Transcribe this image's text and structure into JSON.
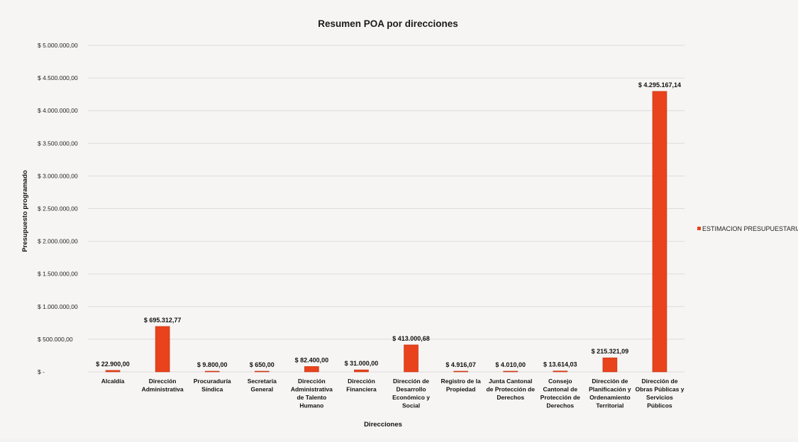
{
  "chart_data": {
    "type": "bar",
    "title": "Resumen POA por direcciones",
    "xlabel": "Direcciones",
    "ylabel": "Presupuesto programado",
    "ylim": [
      0,
      5000000
    ],
    "grid": true,
    "legend_position": "right",
    "y_ticks": [
      0,
      500000,
      1000000,
      1500000,
      2000000,
      2500000,
      3000000,
      3500000,
      4000000,
      4500000,
      5000000
    ],
    "y_tick_labels": [
      "$ -",
      "$ 500.000,00",
      "$ 1.000.000,00",
      "$ 1.500.000,00",
      "$ 2.000.000,00",
      "$ 2.500.000,00",
      "$ 3.000.000,00",
      "$ 3.500.000,00",
      "$ 4.000.000,00",
      "$ 4.500.000,00",
      "$ 5.000.000,00"
    ],
    "categories": [
      [
        "Alcaldía"
      ],
      [
        "Dirección",
        "Administrativa"
      ],
      [
        "Procuraduría",
        "Síndica"
      ],
      [
        "Secretaría",
        "General"
      ],
      [
        "Dirección",
        "Administrativa",
        "de Talento",
        "Humano"
      ],
      [
        "Dirección",
        "Financiera"
      ],
      [
        "Dirección de",
        "Desarrollo",
        "Económico y",
        "Social"
      ],
      [
        "Registro de la",
        "Propiedad"
      ],
      [
        "Junta Cantonal",
        "de Protección de",
        "Derechos"
      ],
      [
        "Consejo",
        "Cantonal de",
        "Protección de",
        "Derechos"
      ],
      [
        "Dirección de",
        "Planificación y",
        "Ordenamiento",
        "Territorial"
      ],
      [
        "Dirección de",
        "Obras Públicas y",
        "Servicios",
        "Públicos"
      ]
    ],
    "series": [
      {
        "name": "ESTIMACION PRESUPUESTARIA",
        "color": "#e8431c",
        "values": [
          22900.0,
          695312.77,
          9800.0,
          650.0,
          82400.0,
          31000.0,
          413000.68,
          4916.07,
          4010.0,
          13614.03,
          215321.09,
          4295167.14
        ],
        "labels": [
          "$ 22.900,00",
          "$ 695.312,77",
          "$ 9.800,00",
          "$ 650,00",
          "$ 82.400,00",
          "$ 31.000,00",
          "$ 413.000,68",
          "$ 4.916,07",
          "$ 4.010,00",
          "$ 13.614,03",
          "$ 215.321,09",
          "$ 4.295.167,14"
        ]
      }
    ]
  }
}
